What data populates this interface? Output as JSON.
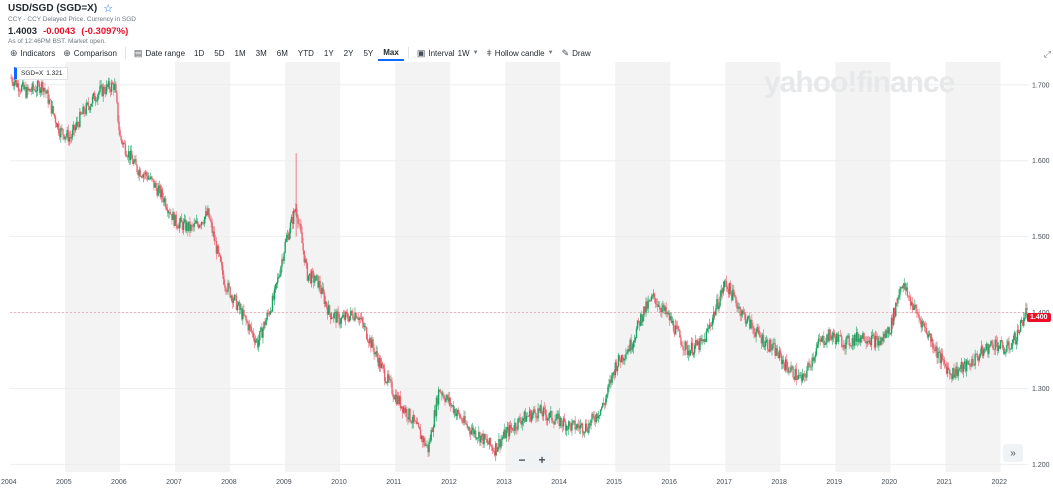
{
  "header": {
    "title": "USD/SGD (SGD=X)",
    "star_icon": "star-icon",
    "source": "CCY - CCY Delayed Price. Currency in SGD",
    "price": "1.4003",
    "change": "-0.0043",
    "change_pct": "(-0.3097%)",
    "as_of": "As of 12:46PM BST. Market open."
  },
  "toolbar": {
    "indicators": "Indicators",
    "comparison": "Comparison",
    "date_range": "Date range",
    "ranges": [
      "1D",
      "5D",
      "1M",
      "3M",
      "6M",
      "YTD",
      "1Y",
      "2Y",
      "5Y",
      "Max"
    ],
    "active_range": "Max",
    "interval_label": "Interval",
    "interval_value": "1W",
    "candle_type": "Hollow candle",
    "draw": "Draw"
  },
  "legend": {
    "symbol": "SGD=X",
    "value": "1.321",
    "color": "#0f69ff"
  },
  "watermark": "yahoo!finance",
  "price_tag": "1.400",
  "zoom": {
    "minus": "−",
    "plus": "+"
  },
  "scroll_end": "»",
  "colors": {
    "up": "#1aa260",
    "down": "#e8636f",
    "band": "#f3f3f3",
    "accent": "#0f69ff",
    "price_tag": "#eb0f29"
  },
  "chart_data": {
    "type": "candlestick",
    "interval": "1W",
    "x_ticks": [
      "2004",
      "2005",
      "2006",
      "2007",
      "2008",
      "2009",
      "2010",
      "2011",
      "2012",
      "2013",
      "2014",
      "2015",
      "2016",
      "2017",
      "2018",
      "2019",
      "2020",
      "2021",
      "2022"
    ],
    "y_ticks": [
      "1.200",
      "1.300",
      "1.400",
      "1.500",
      "1.600",
      "1.700"
    ],
    "ylim": [
      1.19,
      1.73
    ],
    "xlim": [
      2004.0,
      2022.5
    ],
    "alternating_year_bands": true,
    "close_series": {
      "x": [
        2004.0,
        2004.3,
        2004.6,
        2004.9,
        2005.1,
        2005.3,
        2005.6,
        2005.9,
        2006.0,
        2006.3,
        2006.5,
        2006.8,
        2007.0,
        2007.3,
        2007.6,
        2007.9,
        2008.2,
        2008.5,
        2008.8,
        2009.0,
        2009.2,
        2009.4,
        2009.6,
        2009.8,
        2010.0,
        2010.3,
        2010.5,
        2010.8,
        2011.0,
        2011.3,
        2011.6,
        2011.8,
        2012.0,
        2012.3,
        2012.5,
        2012.8,
        2013.0,
        2013.3,
        2013.6,
        2013.9,
        2014.2,
        2014.5,
        2014.8,
        2015.0,
        2015.3,
        2015.5,
        2015.7,
        2016.0,
        2016.3,
        2016.6,
        2016.9,
        2017.0,
        2017.3,
        2017.6,
        2017.9,
        2018.1,
        2018.4,
        2018.7,
        2018.9,
        2019.2,
        2019.5,
        2019.8,
        2020.0,
        2020.2,
        2020.4,
        2020.7,
        2020.9,
        2021.1,
        2021.4,
        2021.7,
        2021.9,
        2022.1,
        2022.3,
        2022.45
      ],
      "y": [
        1.71,
        1.69,
        1.7,
        1.64,
        1.63,
        1.66,
        1.69,
        1.7,
        1.63,
        1.59,
        1.58,
        1.55,
        1.52,
        1.51,
        1.53,
        1.44,
        1.4,
        1.36,
        1.42,
        1.49,
        1.54,
        1.45,
        1.44,
        1.4,
        1.39,
        1.4,
        1.37,
        1.32,
        1.29,
        1.26,
        1.22,
        1.3,
        1.28,
        1.25,
        1.24,
        1.22,
        1.24,
        1.26,
        1.27,
        1.26,
        1.25,
        1.25,
        1.28,
        1.33,
        1.36,
        1.4,
        1.42,
        1.39,
        1.35,
        1.36,
        1.42,
        1.44,
        1.4,
        1.37,
        1.35,
        1.33,
        1.31,
        1.36,
        1.37,
        1.36,
        1.37,
        1.36,
        1.38,
        1.44,
        1.41,
        1.37,
        1.34,
        1.32,
        1.33,
        1.35,
        1.36,
        1.35,
        1.37,
        1.4
      ]
    }
  }
}
